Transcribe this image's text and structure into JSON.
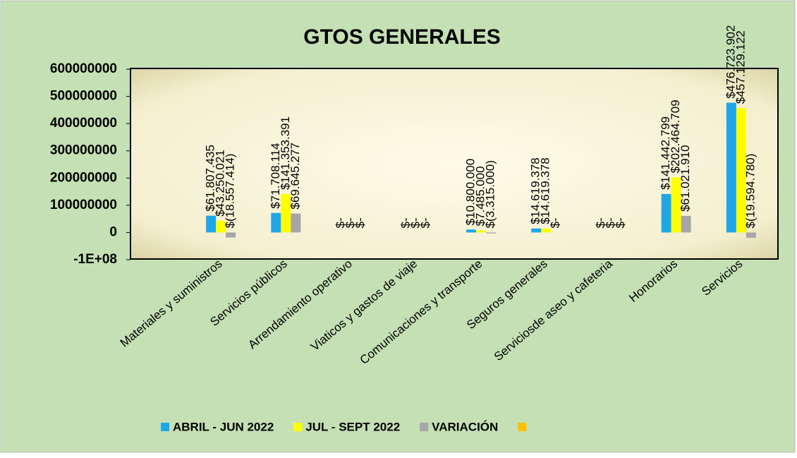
{
  "chart_data": {
    "type": "bar",
    "title": "GTOS GENERALES",
    "categories": [
      "Materiales y suministros",
      "Servicios públicos",
      "Arrendamiento operativo",
      "Viaticos y gastos de viaje",
      "Comunicaciones y transporte",
      "Seguros generales",
      "Serviciosde aseo y cafeteria",
      "Honorarios",
      "Servicios"
    ],
    "series": [
      {
        "name": "ABRIL - JUN 2022",
        "color": "#1ea7e8",
        "values": [
          61807435,
          71708114,
          0,
          0,
          10800000,
          14619378,
          0,
          141442799,
          476723902
        ],
        "value_labels": [
          "$61.807.435",
          "$71.708.114",
          "$-",
          "$-",
          "$10.800.000",
          "$14.619.378",
          "$-",
          "$141.442.799",
          "$476.723.902"
        ]
      },
      {
        "name": "JUL - SEPT 2022",
        "color": "#ffff00",
        "values": [
          43250021,
          141353391,
          0,
          0,
          7485000,
          14619378,
          0,
          202464709,
          457129122
        ],
        "value_labels": [
          "$43.250.021",
          "$141.353.391",
          "$-",
          "$-",
          "$7.485.000",
          "$14.619.378",
          "$-",
          "$202.464.709",
          "$457.129.122"
        ]
      },
      {
        "name": "VARIACIÓN",
        "color": "#a6a6a6",
        "values": [
          -18557414,
          69645277,
          0,
          0,
          -3315000,
          0,
          0,
          61021910,
          -19594780
        ],
        "value_labels": [
          "$(18.557.414)",
          "$69.645.277",
          "$-",
          "$-",
          "$(3.315.000)",
          "$-",
          "$-",
          "$61.021.910",
          "$(19.594.780)"
        ]
      },
      {
        "color": "#ffc000",
        "values": [
          null,
          null,
          null,
          null,
          null,
          null,
          null,
          null,
          null
        ]
      }
    ],
    "ylim": [
      -100000000,
      600000000
    ],
    "yticks": [
      {
        "value": -100000000,
        "label": "-1E+08"
      },
      0,
      100000000,
      200000000,
      300000000,
      400000000,
      500000000,
      600000000
    ],
    "legend": "bottom"
  }
}
